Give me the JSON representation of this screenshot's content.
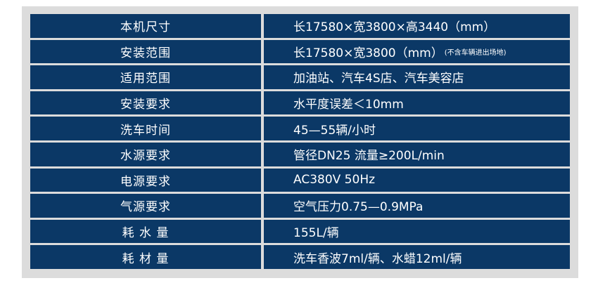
{
  "colors": {
    "cell": "#0b3866",
    "frame": "#dcdcdc",
    "text": "#ffffff"
  },
  "rows": [
    {
      "label": "本机尺寸",
      "value": "长17580×宽3800×高3440（mm）",
      "note": ""
    },
    {
      "label": "安装范围",
      "value": "长17580×宽3800（mm）",
      "note": "(不含车辆进出场地)"
    },
    {
      "label": "适用范围",
      "value": "加油站、汽车4S店、汽车美容店",
      "note": ""
    },
    {
      "label": "安装要求",
      "value": "水平度误差＜10mm",
      "note": ""
    },
    {
      "label": "洗车时间",
      "value": "45—55辆/小时",
      "note": ""
    },
    {
      "label": "水源要求",
      "value": "管径DN25 流量≥200L/min",
      "note": ""
    },
    {
      "label": "电源要求",
      "value": "AC380V 50Hz",
      "note": ""
    },
    {
      "label": "气源要求",
      "value": "空气压力0.75—0.9MPa",
      "note": ""
    },
    {
      "label": "耗 水 量",
      "value": "155L/辆",
      "note": ""
    },
    {
      "label": "耗 材 量",
      "value": "洗车香波7ml/辆、水蜡12ml/辆",
      "note": ""
    }
  ]
}
